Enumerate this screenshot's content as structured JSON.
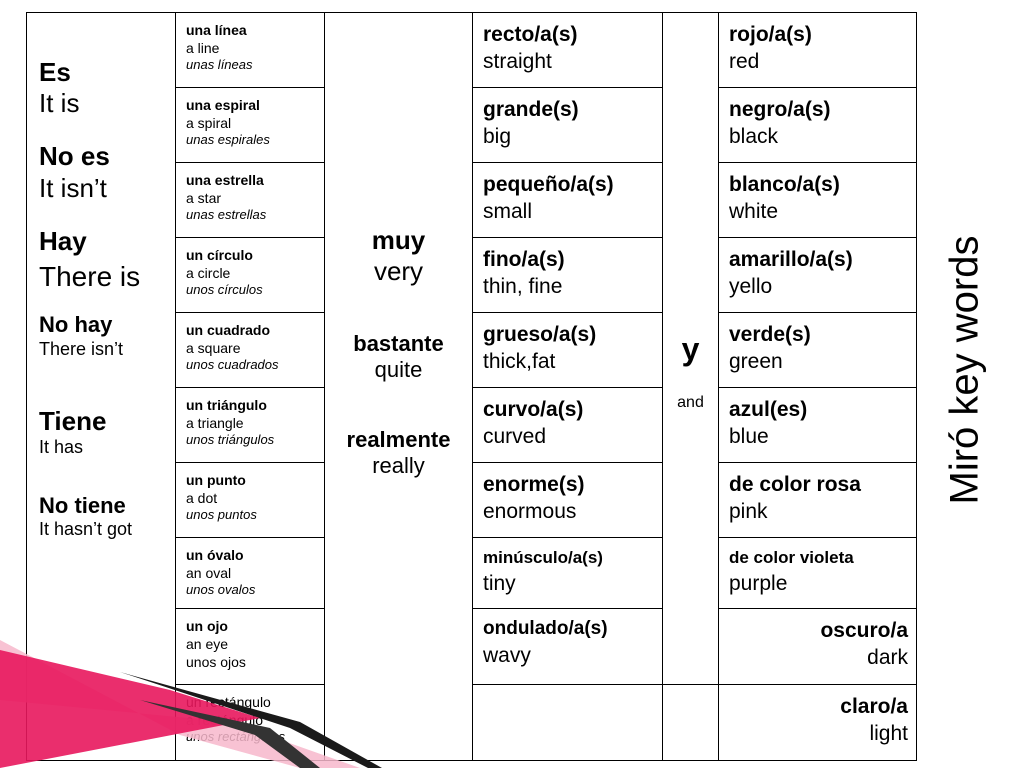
{
  "side_title": "Miró key words",
  "col1": [
    {
      "es": "Es",
      "en": "It is"
    },
    {
      "es": "No es",
      "en": "It isn’t"
    },
    {
      "es": "Hay",
      "en": "There is"
    },
    {
      "es": "No hay",
      "en": "There isn’t"
    },
    {
      "es": "Tiene",
      "en": "It has"
    },
    {
      "es": "No tiene",
      "en": "It hasn’t got"
    }
  ],
  "nouns": [
    {
      "es": "una línea",
      "en": "a line",
      "pl": "unas líneas"
    },
    {
      "es": "una espiral",
      "en": "a spiral",
      "pl": "unas espirales"
    },
    {
      "es": "una estrella",
      "en": "a star",
      "pl": "unas estrellas"
    },
    {
      "es": "un círculo",
      "en": "a circle",
      "pl": "unos círculos"
    },
    {
      "es": "un cuadrado",
      "en": "a square",
      "pl": "unos cuadrados"
    },
    {
      "es": "un triángulo",
      "en": "a triangle",
      "pl": "unos triángulos"
    },
    {
      "es": "un punto",
      "en": "a dot",
      "pl": "unos puntos"
    },
    {
      "es": "un óvalo",
      "en": "an oval",
      "pl": "unos ovalos"
    },
    {
      "es": "un ojo",
      "en": "an eye",
      "pl": "unos ojos"
    },
    {
      "es": "un rectángulo",
      "en": "a rectángulo",
      "pl": "unos rectángulos"
    }
  ],
  "adverbs": [
    {
      "es": "muy",
      "en": "very"
    },
    {
      "es": "bastante",
      "en": "quite"
    },
    {
      "es": "realmente",
      "en": "really"
    }
  ],
  "adjectives": [
    {
      "es": "recto/a(s)",
      "en": "straight"
    },
    {
      "es": "grande(s)",
      "en": "big"
    },
    {
      "es": "pequeño/a(s)",
      "en": "small"
    },
    {
      "es": "fino/a(s)",
      "en": "thin, fine"
    },
    {
      "es": "grueso/a(s)",
      "en": "thick,fat"
    },
    {
      "es": "curvo/a(s)",
      "en": "curved"
    },
    {
      "es": "enorme(s)",
      "en": "enormous"
    },
    {
      "es": "minúsculo/a(s)",
      "en": "tiny"
    },
    {
      "es": "ondulado/a(s)",
      "en": "wavy"
    }
  ],
  "conjunction": {
    "es": "y",
    "en": "and"
  },
  "colours": [
    {
      "es": "rojo/a(s)",
      "en": "red"
    },
    {
      "es": "negro/a(s)",
      "en": "black"
    },
    {
      "es": "blanco/a(s)",
      "en": "white"
    },
    {
      "es": "amarillo/a(s)",
      "en": "yello"
    },
    {
      "es": "verde(s)",
      "en": "green"
    },
    {
      "es": "azul(es)",
      "en": "blue"
    },
    {
      "es": "de color rosa",
      "en": "pink"
    },
    {
      "es": "de color violeta",
      "en": "purple"
    },
    {
      "es": "oscuro/a",
      "en": "dark"
    },
    {
      "es": "claro/a",
      "en": "light"
    }
  ],
  "colors": {
    "border": "#000000",
    "ribbon_pink": "#e8175d",
    "ribbon_light": "#f7b7cb"
  }
}
